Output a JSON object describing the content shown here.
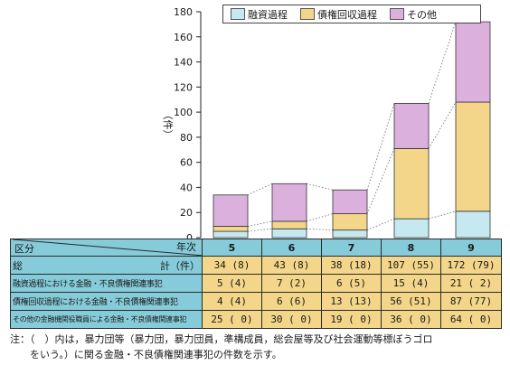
{
  "chart_data": {
    "type": "bar",
    "stacked": true,
    "categories": [
      "5",
      "6",
      "7",
      "8",
      "9"
    ],
    "series": [
      {
        "name": "融資過程",
        "values": [
          5,
          7,
          6,
          15,
          21
        ],
        "color": "#c6e8f1"
      },
      {
        "name": "債権回収過程",
        "values": [
          4,
          6,
          13,
          56,
          87
        ],
        "color": "#f4d68a"
      },
      {
        "name": "その他",
        "values": [
          25,
          30,
          19,
          36,
          64
        ],
        "color": "#dcb0dc"
      }
    ],
    "ylabel": "（件）",
    "ylim": [
      0,
      180
    ],
    "yticks": [
      0,
      20,
      40,
      60,
      80,
      100,
      120,
      140,
      160,
      180
    ],
    "legend_position": "top-right"
  },
  "table": {
    "header_left": "区分",
    "header_right": "年次",
    "total_label_a": "総",
    "total_label_b": "計（件）",
    "rows": [
      {
        "label": "融資過程における金融・不良債権関連事犯",
        "cells": [
          "5 (4)",
          "7 (2)",
          "6 (5)",
          "15 (4)",
          "21 ( 2)"
        ]
      },
      {
        "label": "債権回収過程における金融・不良債権関連事犯",
        "cells": [
          "4 (4)",
          "6 (6)",
          "13 (13)",
          "56 (51)",
          "87 (77)"
        ]
      },
      {
        "label": "その他の金融機関役職員による金融・不良債権関連事犯",
        "cells": [
          "25 ( 0)",
          "30 ( 0)",
          "19 ( 0)",
          "36 ( 0)",
          "64 ( 0)"
        ]
      }
    ],
    "totals": [
      "34 (8)",
      "43 (8)",
      "38 (18)",
      "107 (55)",
      "172 (79)"
    ]
  },
  "note": {
    "line1": "注：（　）内は，暴力団等（暴力団，暴力団員，準構成員，総会屋等及び社会運動等標ぼうゴロ",
    "line2": "をいう。）に関る金融・不良債権関連事犯の件数を示す。"
  }
}
